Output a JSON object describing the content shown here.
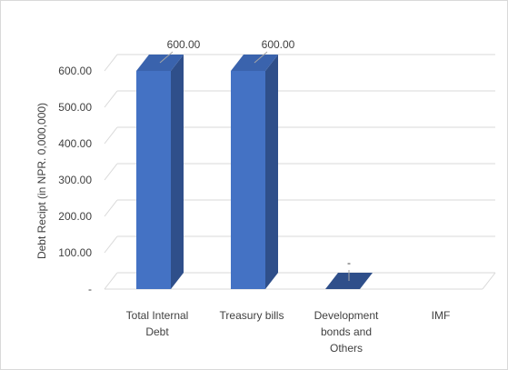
{
  "chart_data": {
    "type": "bar",
    "style": "3d-column",
    "categories": [
      "Total Internal Debt",
      "Treasury bills",
      "Development bonds and Others",
      "IMF"
    ],
    "category_lines": [
      [
        "Total Internal",
        "Debt"
      ],
      [
        "Treasury bills"
      ],
      [
        "Development",
        "bonds and",
        "Others"
      ],
      [
        "IMF"
      ]
    ],
    "values": [
      600,
      600,
      0,
      null
    ],
    "data_labels": [
      "600.00",
      "600.00",
      "-",
      ""
    ],
    "ylabel": "Debt Recipt (in NPR. 0,000,000)",
    "xlabel": "",
    "title": "",
    "ylim": [
      0,
      700
    ],
    "y_ticks": [
      0,
      100,
      200,
      300,
      400,
      500,
      600
    ],
    "y_tick_labels": [
      "-",
      "100.00",
      "200.00",
      "300.00",
      "400.00",
      "500.00",
      "600.00"
    ],
    "grid": true,
    "legend": "none",
    "colors": {
      "bar_front": "#4472c4",
      "bar_side": "#2f4f8a",
      "bar_top": "#3a63ad",
      "gridline": "#d9d9d9",
      "leader_line": "#a6a6a6",
      "text": "#404040"
    }
  }
}
